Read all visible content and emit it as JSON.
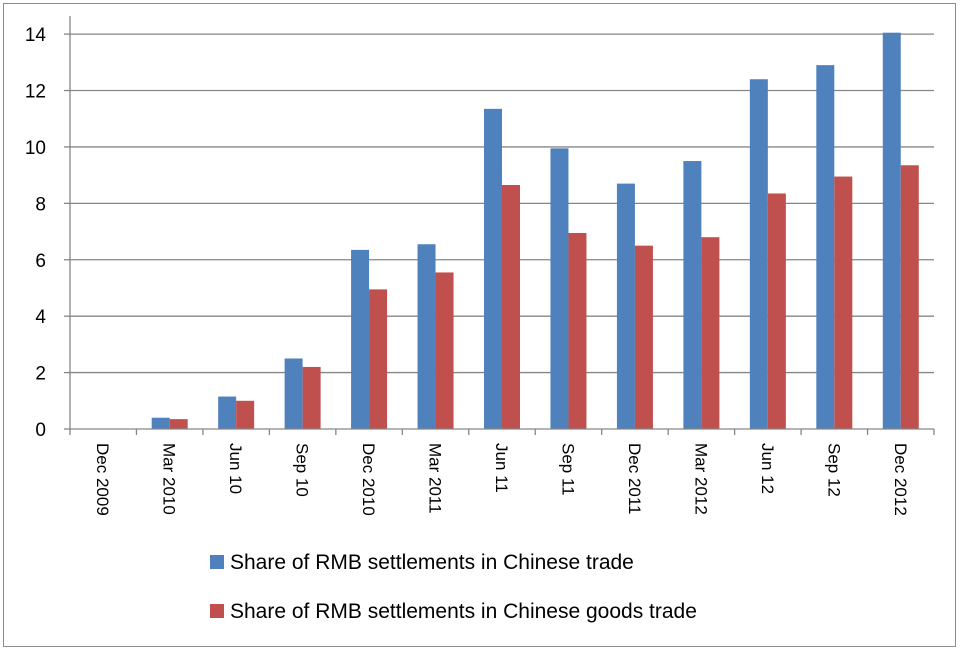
{
  "chart_data": {
    "type": "bar",
    "categories": [
      "Dec 2009",
      "Mar 2010",
      "Jun 10",
      "Sep 10",
      "Dec 2010",
      "Mar 2011",
      "Jun 11",
      "Sep 11",
      "Dec 2011",
      "Mar 2012",
      "Jun 12",
      "Sep 12",
      "Dec 2012"
    ],
    "series": [
      {
        "name": "Share of RMB settlements in Chinese trade",
        "color": "#4f81bd",
        "values": [
          0,
          0.4,
          1.15,
          2.5,
          6.35,
          6.55,
          11.35,
          9.95,
          8.7,
          9.5,
          12.4,
          12.9,
          14.05
        ]
      },
      {
        "name": "Share of RMB settlements in Chinese goods trade",
        "color": "#c0504d",
        "values": [
          0,
          0.35,
          1.0,
          2.2,
          4.95,
          5.55,
          8.65,
          6.95,
          6.5,
          6.8,
          8.35,
          8.95,
          9.35
        ]
      }
    ],
    "yticks": [
      "0",
      "2",
      "4",
      "6",
      "8",
      "10",
      "12",
      "14"
    ],
    "ylim": [
      0,
      14.5
    ],
    "title": "",
    "xlabel": "",
    "ylabel": "",
    "grid": true,
    "legend_position": "bottom"
  }
}
